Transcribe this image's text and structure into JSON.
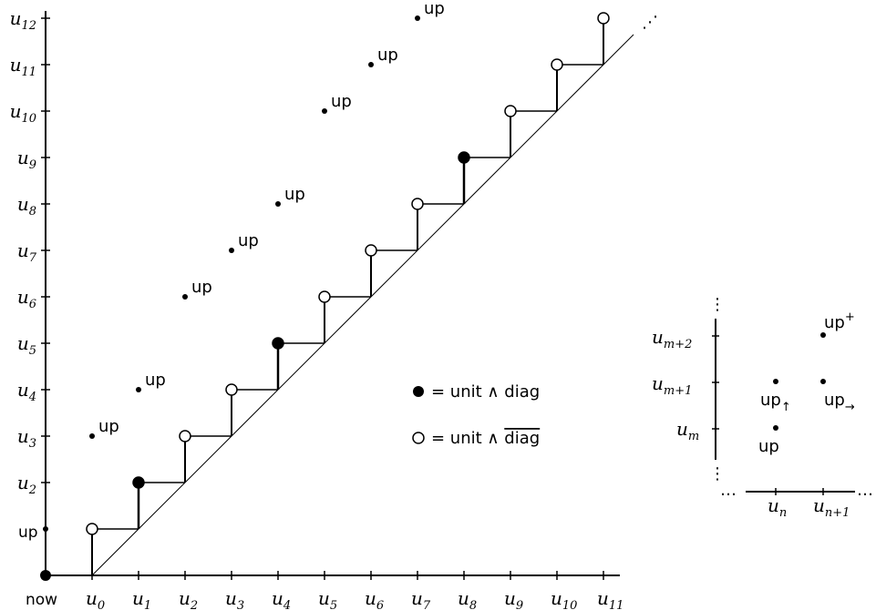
{
  "main": {
    "origin_label": "now",
    "y_axis_extra_label": "up",
    "x_axis_labels": [
      {
        "base": "u",
        "sub": "0"
      },
      {
        "base": "u",
        "sub": "1"
      },
      {
        "base": "u",
        "sub": "2"
      },
      {
        "base": "u",
        "sub": "3"
      },
      {
        "base": "u",
        "sub": "4"
      },
      {
        "base": "u",
        "sub": "5"
      },
      {
        "base": "u",
        "sub": "6"
      },
      {
        "base": "u",
        "sub": "7"
      },
      {
        "base": "u",
        "sub": "8"
      },
      {
        "base": "u",
        "sub": "9"
      },
      {
        "base": "u",
        "sub": "10"
      },
      {
        "base": "u",
        "sub": "11"
      }
    ],
    "y_axis_labels": [
      {
        "base": "u",
        "sub": "2"
      },
      {
        "base": "u",
        "sub": "3"
      },
      {
        "base": "u",
        "sub": "4"
      },
      {
        "base": "u",
        "sub": "5"
      },
      {
        "base": "u",
        "sub": "6"
      },
      {
        "base": "u",
        "sub": "7"
      },
      {
        "base": "u",
        "sub": "8"
      },
      {
        "base": "u",
        "sub": "9"
      },
      {
        "base": "u",
        "sub": "10"
      },
      {
        "base": "u",
        "sub": "11"
      },
      {
        "base": "u",
        "sub": "12"
      }
    ],
    "up_label": "up",
    "up_points": [
      {
        "col": 1,
        "row": 3
      },
      {
        "col": 2,
        "row": 4
      },
      {
        "col": 3,
        "row": 6
      },
      {
        "col": 4,
        "row": 7
      },
      {
        "col": 5,
        "row": 8
      },
      {
        "col": 6,
        "row": 10
      },
      {
        "col": 7,
        "row": 11
      },
      {
        "col": 8,
        "row": 12
      }
    ],
    "stair_points": [
      {
        "col": 1,
        "row": 1,
        "filled": false
      },
      {
        "col": 2,
        "row": 2,
        "filled": true
      },
      {
        "col": 3,
        "row": 3,
        "filled": false
      },
      {
        "col": 4,
        "row": 4,
        "filled": false
      },
      {
        "col": 5,
        "row": 5,
        "filled": true
      },
      {
        "col": 6,
        "row": 6,
        "filled": false
      },
      {
        "col": 7,
        "row": 7,
        "filled": false
      },
      {
        "col": 8,
        "row": 8,
        "filled": false
      },
      {
        "col": 9,
        "row": 9,
        "filled": true
      },
      {
        "col": 10,
        "row": 10,
        "filled": false
      },
      {
        "col": 11,
        "row": 11,
        "filled": false
      },
      {
        "col": 12,
        "row": 12,
        "filled": false
      }
    ]
  },
  "legend": {
    "filled_text": "= unit ∧ diag",
    "open_prefix": "= unit ∧ ",
    "open_overlined": "diag"
  },
  "inset": {
    "x_labels": [
      {
        "base": "u",
        "sub": "n"
      },
      {
        "base": "u",
        "sub": "n+1"
      }
    ],
    "y_labels": [
      {
        "base": "u",
        "sub": "m"
      },
      {
        "base": "u",
        "sub": "m+1"
      },
      {
        "base": "u",
        "sub": "m+2"
      }
    ],
    "label_up": "up",
    "label_up_up": "up",
    "up_arrow": "↑",
    "label_up_right": "up",
    "right_arrow": "→",
    "label_up_plus": "up",
    "plus_sign": "+",
    "vdots": "⋮",
    "hdots": "…",
    "corner_dots": "⋰"
  }
}
